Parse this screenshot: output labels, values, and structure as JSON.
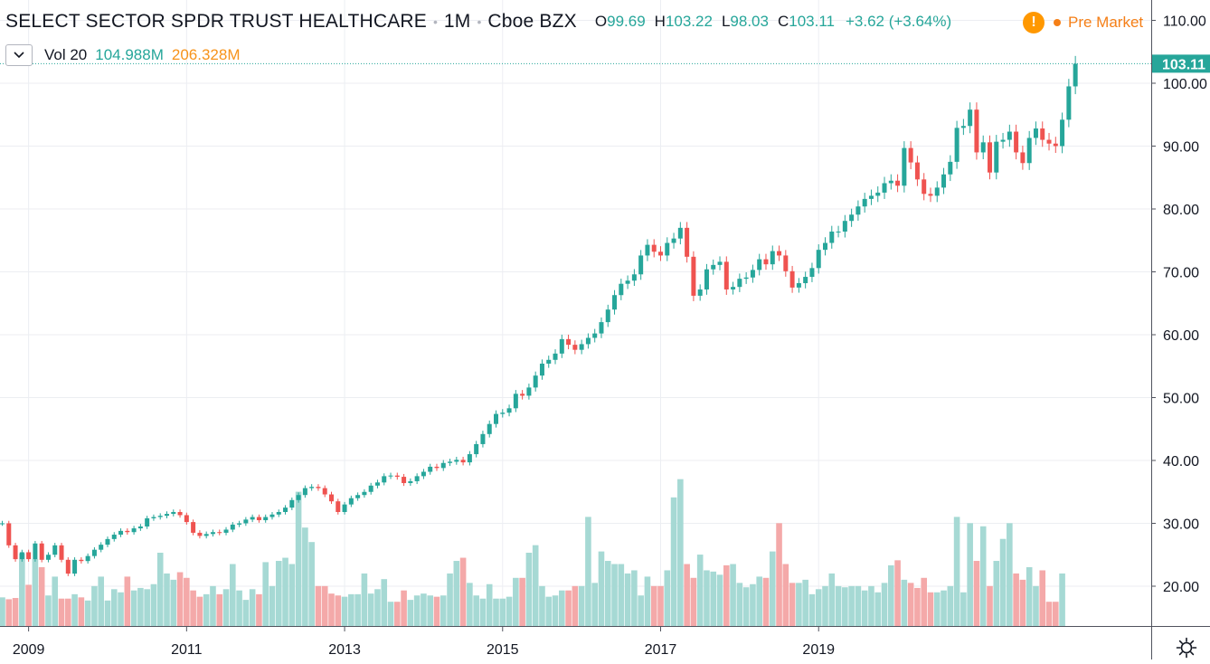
{
  "header": {
    "symbol": "SELECT SECTOR SPDR TRUST HEALTHCARE",
    "interval": "1M",
    "exchange": "Cboe BZX",
    "open_label": "O",
    "open": "99.69",
    "high_label": "H",
    "high": "103.22",
    "low_label": "L",
    "low": "98.03",
    "close_label": "C",
    "close": "103.11",
    "change": "+3.62 (+3.64%)"
  },
  "volume_legend": {
    "label": "Vol 20",
    "value": "104.988M",
    "ma_value": "206.328M"
  },
  "status": {
    "warning_glyph": "!",
    "session": "Pre Market"
  },
  "last_price_label": "103.11",
  "colors": {
    "up": "#26a69a",
    "down": "#ef5350",
    "volume_up": "#a6d9d4",
    "volume_down": "#f4a9a9",
    "grid": "#eceef2",
    "axis_text": "#131722",
    "volume_ma": "#f7931a"
  },
  "icons": {
    "collapse": "chevron-down-icon",
    "warning": "warning-icon",
    "settings": "gear-icon"
  },
  "chart_data": {
    "type": "candlestick",
    "title": "SELECT SECTOR SPDR TRUST HEALTHCARE",
    "interval": "1M",
    "yaxis": {
      "ticks": [
        "20.00",
        "30.00",
        "40.00",
        "50.00",
        "60.00",
        "70.00",
        "80.00",
        "90.00",
        "100.00",
        "110.00"
      ],
      "ylim": [
        15,
        113
      ]
    },
    "xaxis": {
      "ticks": [
        "2009",
        "2011",
        "2013",
        "2015",
        "2017",
        "2019"
      ],
      "start": "2008-09",
      "end": "2019-11"
    },
    "legend_placement": "top-left",
    "series": [
      {
        "name": "Price",
        "close": [
          30.0,
          26.5,
          24.3,
          25.4,
          24.3,
          26.8,
          24.2,
          25.0,
          26.5,
          24.2,
          22.0,
          24.2,
          24.0,
          24.8,
          25.8,
          26.6,
          27.5,
          28.2,
          28.8,
          28.6,
          29.2,
          29.5,
          30.8,
          31.0,
          31.2,
          31.5,
          31.8,
          31.3,
          30.2,
          28.5,
          28.0,
          28.3,
          28.6,
          28.5,
          29.0,
          29.8,
          30.0,
          30.6,
          31.0,
          30.5,
          31.0,
          31.4,
          31.8,
          32.5,
          33.7,
          34.5,
          35.6,
          35.8,
          35.6,
          34.6,
          33.5,
          31.8,
          33.0,
          34.0,
          34.5,
          35.0,
          36.0,
          36.5,
          37.5,
          37.6,
          37.4,
          36.4,
          36.7,
          37.5,
          38.2,
          39.0,
          38.8,
          39.6,
          39.8,
          40.1,
          39.7,
          41.0,
          42.6,
          44.2,
          45.8,
          47.4,
          47.6,
          48.3,
          50.6,
          50.3,
          51.6,
          53.5,
          55.4,
          56.0,
          57.0,
          59.3,
          58.4,
          57.6,
          58.5,
          59.5,
          60.2,
          62.0,
          64.0,
          66.3,
          68.1,
          68.6,
          69.6,
          72.6,
          74.3,
          73.2,
          72.6,
          74.6,
          75.3,
          77.0,
          72.4,
          66.2,
          67.2,
          70.4,
          71.1,
          71.6,
          67.2,
          67.6,
          68.9,
          69.1,
          70.3,
          72.0,
          71.2,
          73.3,
          72.6,
          70.1,
          67.5,
          68.2,
          69.2,
          70.6,
          73.5,
          74.6,
          76.4,
          76.4,
          78.1,
          79.1,
          80.4,
          81.6,
          82.1,
          82.6,
          84.1,
          84.5,
          83.7,
          89.7,
          87.4,
          84.7,
          82.4,
          82.1,
          83.4,
          85.5,
          87.5,
          92.9,
          93.2,
          95.8,
          89.0,
          90.6,
          85.8,
          90.7,
          91.0,
          92.3,
          89.0,
          87.3,
          91.3,
          92.8,
          91.0,
          90.4,
          90.0,
          94.2,
          99.5,
          103.1
        ]
      },
      {
        "name": "Volume",
        "values": [
          19.7,
          19.4,
          19.6,
          26.7,
          21.7,
          25.8,
          24.5,
          20.0,
          23.0,
          19.5,
          19.5,
          20.2,
          19.7,
          19.2,
          21.5,
          23.0,
          19.2,
          21.0,
          20.5,
          23.0,
          20.8,
          21.2,
          21.0,
          21.8,
          26.8,
          23.5,
          22.5,
          23.7,
          22.8,
          20.8,
          19.8,
          20.2,
          21.5,
          20.2,
          21.0,
          25.0,
          20.8,
          19.3,
          21.0,
          20.2,
          25.3,
          21.5,
          25.5,
          26.0,
          25.0,
          36.5,
          30.8,
          28.5,
          21.5,
          21.5,
          20.3,
          20.0,
          19.8,
          20.2,
          20.2,
          23.5,
          20.3,
          21.0,
          22.6,
          19.0,
          19.0,
          20.8,
          19.3,
          20.0,
          20.3,
          20.0,
          19.8,
          20.0,
          23.5,
          25.5,
          26.0,
          22.0,
          20.0,
          19.5,
          21.8,
          19.5,
          19.5,
          19.8,
          22.8,
          22.8,
          26.8,
          28.0,
          21.5,
          19.8,
          20.0,
          20.8,
          20.8,
          21.5,
          21.5,
          32.5,
          22.0,
          27.0,
          25.5,
          25.0,
          25.0,
          23.5,
          24.0,
          20.0,
          23.0,
          21.5,
          21.5,
          24.0,
          35.6,
          38.5,
          25.0,
          22.8,
          26.5,
          24.0,
          23.8,
          23.3,
          24.8,
          25.0,
          22.0,
          21.3,
          21.8,
          23.0,
          22.8,
          27.0,
          31.5,
          25.0,
          22.0,
          22.0,
          22.5,
          20.2,
          21.0,
          21.5,
          23.5,
          21.5,
          21.3,
          21.5,
          21.5,
          20.8,
          21.5,
          20.5,
          22.0,
          24.8,
          25.6,
          22.5,
          22.0,
          21.2,
          22.8,
          20.5,
          20.5,
          20.8,
          21.5,
          32.5,
          20.5,
          31.5,
          25.5,
          31.0,
          21.5,
          25.5,
          29.0,
          31.5,
          23.5,
          22.5,
          24.5,
          21.5,
          24.0,
          19.0,
          19.0,
          23.5
        ]
      }
    ]
  }
}
